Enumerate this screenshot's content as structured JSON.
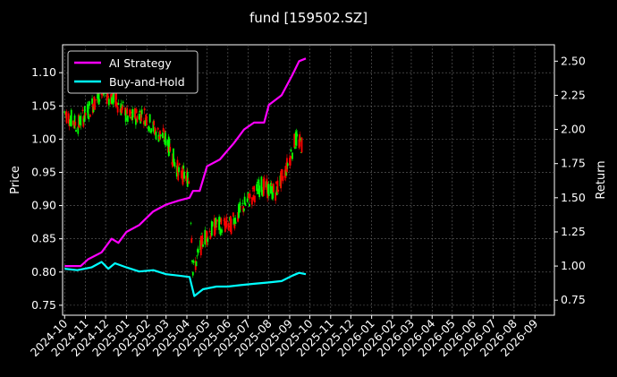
{
  "chart_data": {
    "type": "line",
    "title": "fund [159502.SZ]",
    "xlabel": "",
    "ylabel": "Price",
    "y2label": "Return",
    "x_ticks": [
      "2024-10",
      "2024-11",
      "2024-12",
      "2025-01",
      "2025-02",
      "2025-03",
      "2025-04",
      "2025-05",
      "2025-06",
      "2025-07",
      "2025-08",
      "2025-09",
      "2025-10",
      "2025-11",
      "2025-12",
      "2026-01",
      "2026-02",
      "2026-03",
      "2026-04",
      "2026-05",
      "2026-06",
      "2026-07",
      "2026-08",
      "2026-09"
    ],
    "xlim": [
      "2024-09-28",
      "2026-09-30"
    ],
    "ylim": [
      0.735,
      1.142
    ],
    "y_ticks": [
      0.75,
      0.8,
      0.85,
      0.9,
      0.95,
      1.0,
      1.05,
      1.1
    ],
    "y2lim": [
      0.64,
      2.62
    ],
    "y2_ticks": [
      0.75,
      1.0,
      1.25,
      1.5,
      1.75,
      2.0,
      2.25,
      2.5
    ],
    "grid": true,
    "legend": {
      "position": "top-left"
    },
    "candles": {
      "up_color": "#00ff00",
      "down_color": "#ff0000",
      "anchors": [
        [
          "2024-10-01",
          1.04
        ],
        [
          "2024-10-20",
          1.02
        ],
        [
          "2024-11-10",
          1.05
        ],
        [
          "2024-11-25",
          1.07
        ],
        [
          "2024-12-15",
          1.06
        ],
        [
          "2025-01-05",
          1.03
        ],
        [
          "2025-01-25",
          1.04
        ],
        [
          "2025-02-15",
          1.01
        ],
        [
          "2025-03-01",
          1.0
        ],
        [
          "2025-03-20",
          0.95
        ],
        [
          "2025-04-05",
          0.94
        ],
        [
          "2025-04-10",
          0.8
        ],
        [
          "2025-04-25",
          0.85
        ],
        [
          "2025-05-15",
          0.87
        ],
        [
          "2025-06-05",
          0.87
        ],
        [
          "2025-06-25",
          0.9
        ],
        [
          "2025-07-20",
          0.93
        ],
        [
          "2025-08-10",
          0.92
        ],
        [
          "2025-08-25",
          0.95
        ],
        [
          "2025-09-10",
          1.0
        ],
        [
          "2025-09-20",
          0.99
        ]
      ]
    },
    "series": [
      {
        "name": "AI Strategy",
        "axis": "right",
        "color": "#ff00ff",
        "points": [
          [
            "2024-10-01",
            1.0
          ],
          [
            "2024-10-25",
            1.0
          ],
          [
            "2024-11-05",
            1.05
          ],
          [
            "2024-11-25",
            1.1
          ],
          [
            "2024-12-10",
            1.2
          ],
          [
            "2024-12-20",
            1.17
          ],
          [
            "2025-01-01",
            1.25
          ],
          [
            "2025-01-20",
            1.3
          ],
          [
            "2025-02-10",
            1.4
          ],
          [
            "2025-03-01",
            1.45
          ],
          [
            "2025-03-20",
            1.48
          ],
          [
            "2025-04-05",
            1.5
          ],
          [
            "2025-04-10",
            1.55
          ],
          [
            "2025-04-20",
            1.55
          ],
          [
            "2025-05-01",
            1.73
          ],
          [
            "2025-05-20",
            1.78
          ],
          [
            "2025-06-10",
            1.9
          ],
          [
            "2025-06-25",
            2.0
          ],
          [
            "2025-07-10",
            2.05
          ],
          [
            "2025-07-25",
            2.05
          ],
          [
            "2025-08-01",
            2.18
          ],
          [
            "2025-08-20",
            2.25
          ],
          [
            "2025-09-05",
            2.4
          ],
          [
            "2025-09-15",
            2.5
          ],
          [
            "2025-09-25",
            2.52
          ]
        ]
      },
      {
        "name": "Buy-and-Hold",
        "axis": "right",
        "color": "#00ffff",
        "points": [
          [
            "2024-10-01",
            0.98
          ],
          [
            "2024-10-20",
            0.97
          ],
          [
            "2024-11-10",
            0.99
          ],
          [
            "2024-11-25",
            1.03
          ],
          [
            "2024-12-05",
            0.98
          ],
          [
            "2024-12-15",
            1.02
          ],
          [
            "2025-01-01",
            0.99
          ],
          [
            "2025-01-20",
            0.96
          ],
          [
            "2025-02-10",
            0.97
          ],
          [
            "2025-03-01",
            0.94
          ],
          [
            "2025-03-20",
            0.93
          ],
          [
            "2025-04-05",
            0.92
          ],
          [
            "2025-04-12",
            0.78
          ],
          [
            "2025-04-25",
            0.83
          ],
          [
            "2025-05-15",
            0.85
          ],
          [
            "2025-06-01",
            0.85
          ],
          [
            "2025-06-20",
            0.86
          ],
          [
            "2025-07-10",
            0.87
          ],
          [
            "2025-08-01",
            0.88
          ],
          [
            "2025-08-20",
            0.89
          ],
          [
            "2025-09-05",
            0.93
          ],
          [
            "2025-09-15",
            0.95
          ],
          [
            "2025-09-25",
            0.94
          ]
        ]
      }
    ]
  }
}
